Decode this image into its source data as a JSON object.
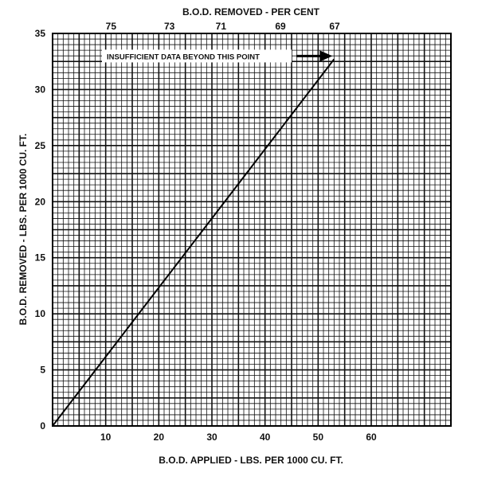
{
  "chart_data": {
    "type": "line",
    "title": "",
    "xlabel": "B.O.D. APPLIED - LBS. PER 1000 CU. FT.",
    "ylabel": "B.O.D. REMOVED - LBS. PER 1000 CU. FT.",
    "top_axis_label": "B.O.D. REMOVED - PER CENT",
    "xlim": [
      0,
      75
    ],
    "ylim": [
      0,
      35
    ],
    "x_ticks": [
      10,
      20,
      30,
      40,
      50,
      60
    ],
    "y_ticks": [
      0,
      5,
      10,
      15,
      20,
      25,
      30,
      35
    ],
    "top_ticks": [
      {
        "label": "75",
        "x": 11
      },
      {
        "label": "73",
        "x": 22
      },
      {
        "label": "71",
        "x": 31.7
      },
      {
        "label": "69",
        "x": 42.9
      },
      {
        "label": "67",
        "x": 53.1
      }
    ],
    "grid": true,
    "series": [
      {
        "points": [
          [
            0,
            0
          ],
          [
            53,
            32.7
          ]
        ],
        "color": "#000000"
      }
    ],
    "annotation": {
      "text": "INSUFFICIENT DATA BEYOND THIS POINT",
      "points_to": [
        53,
        32.7
      ]
    }
  }
}
